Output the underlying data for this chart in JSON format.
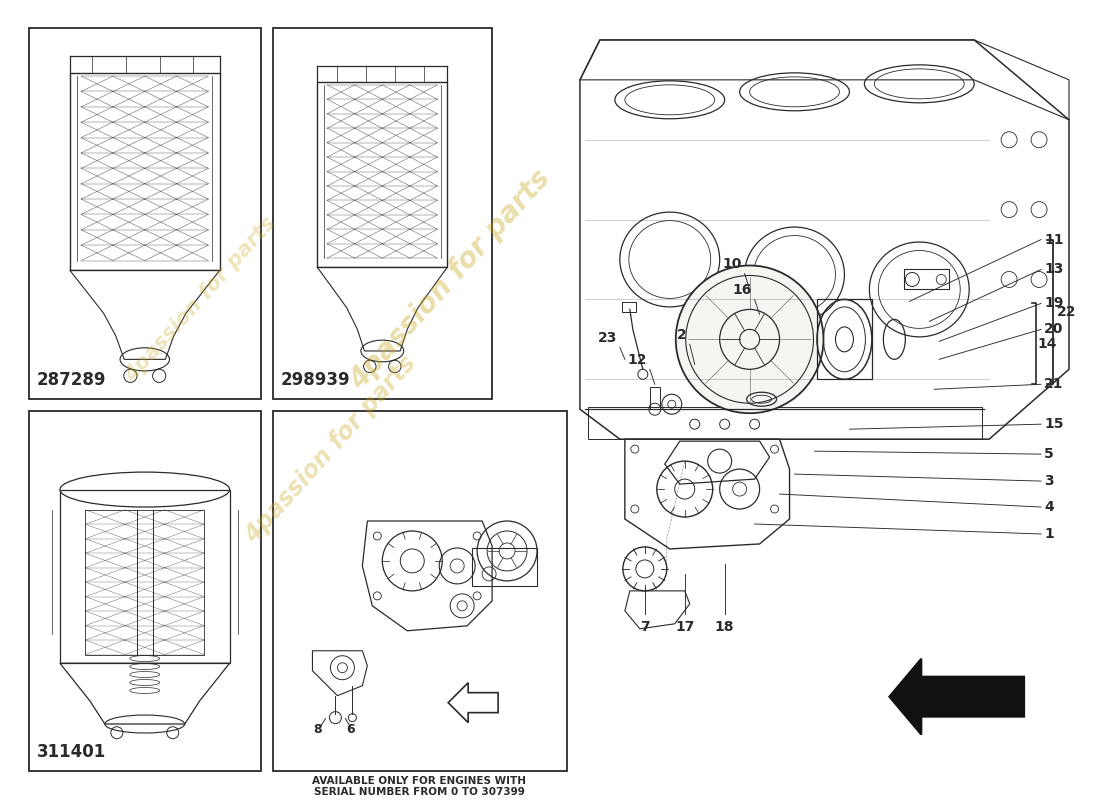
{
  "bg_color": "#ffffff",
  "lc": "#2a2a2a",
  "lc_light": "#888888",
  "part_numbers": [
    "287289",
    "298939",
    "311401"
  ],
  "note_line1": "AVAILABLE ONLY FOR ENGINES WITH",
  "note_line2": "SERIAL NUMBER FROM 0 TO 307399",
  "watermark": "4passion for parts",
  "watermark_color": "#c8a820",
  "callout_labels_right": [
    "11",
    "13",
    "19",
    "20",
    "21",
    "15",
    "5",
    "3",
    "4",
    "1"
  ],
  "callout_labels_top": [
    "10",
    "16",
    "2",
    "12",
    "23"
  ],
  "callout_labels_bot": [
    "7",
    "17",
    "18"
  ],
  "brace22": "22",
  "brace14": "14"
}
